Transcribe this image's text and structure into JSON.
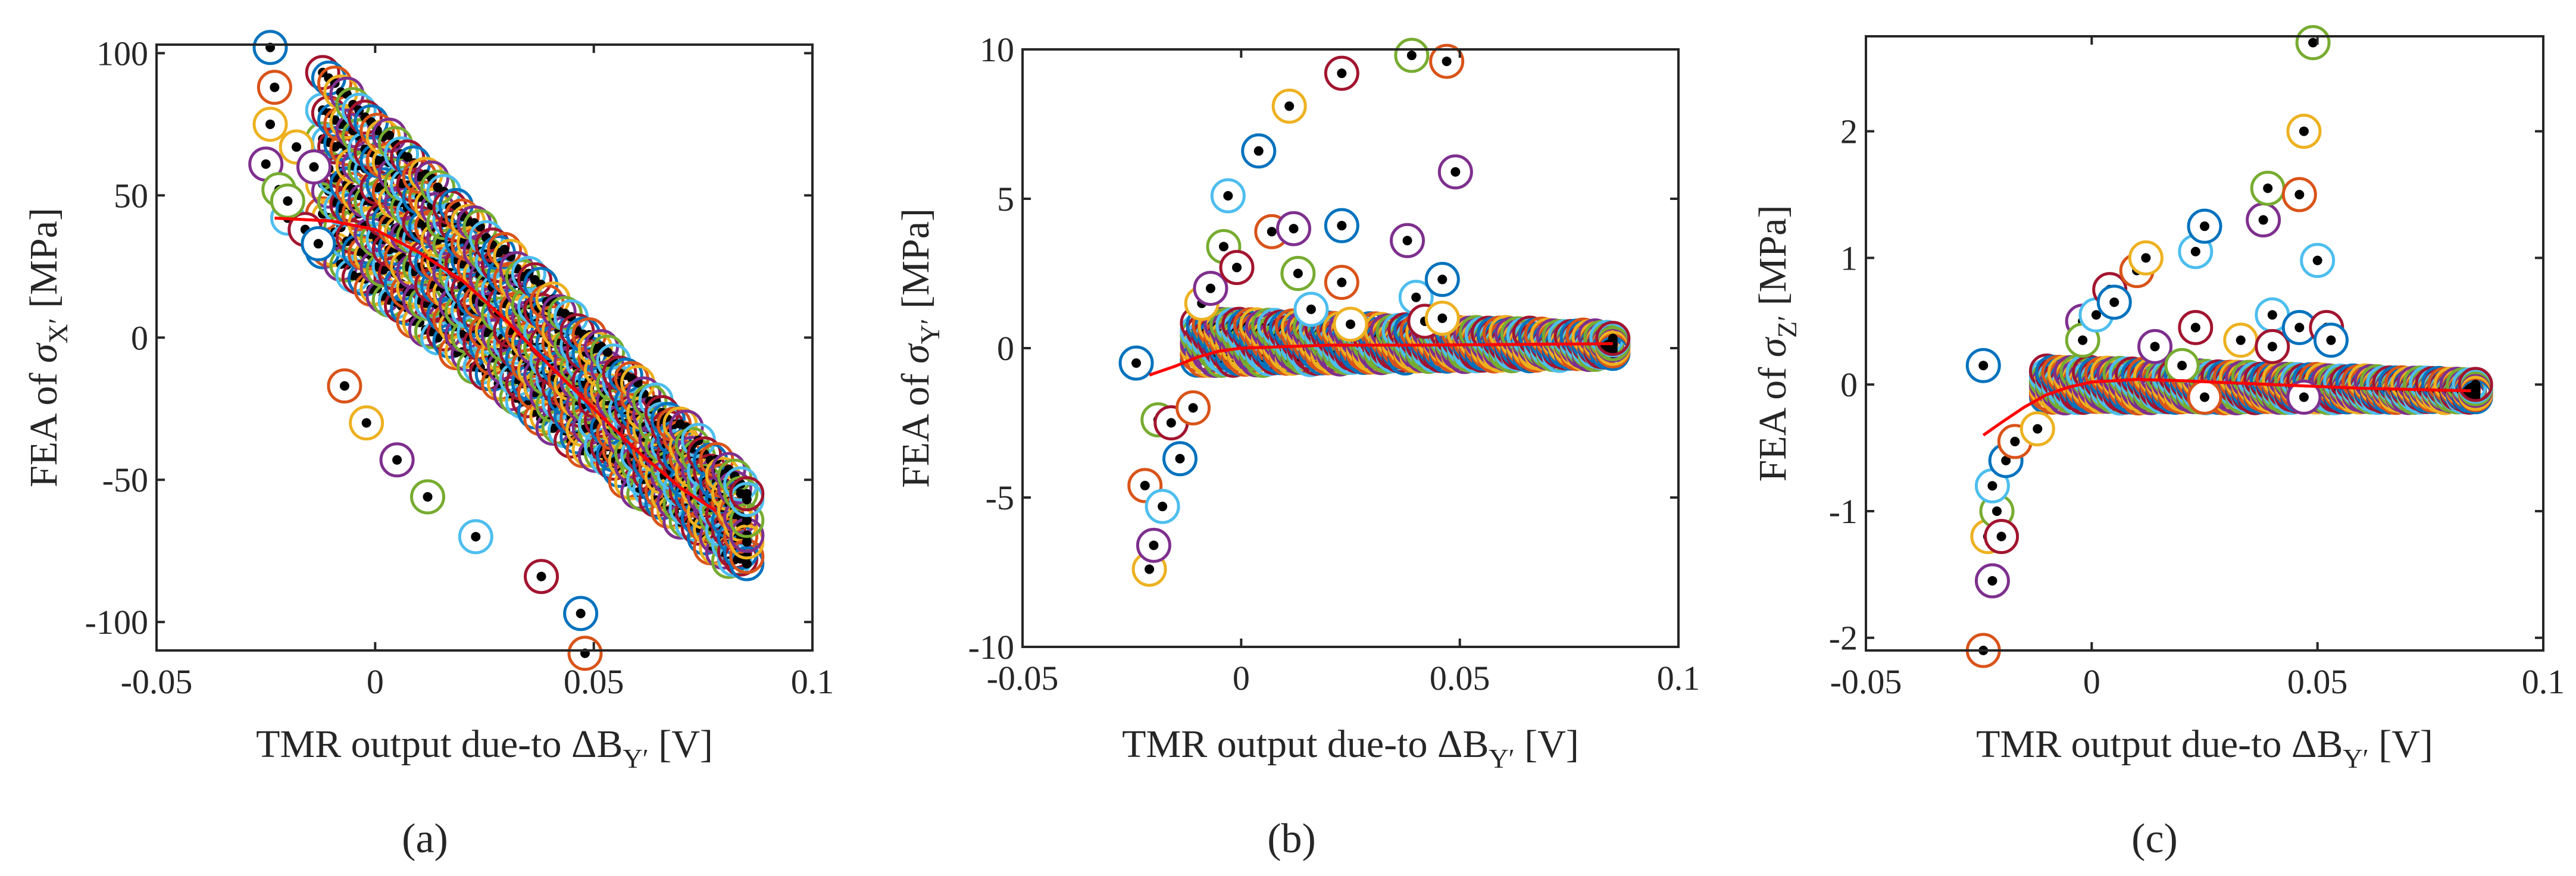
{
  "figure": {
    "marker_colors": [
      "#0072BD",
      "#D95319",
      "#EDB120",
      "#7E2F8E",
      "#77AC30",
      "#4DBEEE",
      "#A2142F"
    ],
    "dot_color": "#000000",
    "fit_color": "#FF0000"
  },
  "chart_data": [
    {
      "type": "scatter",
      "panel": "a",
      "caption": "(a)",
      "xlabel": "TMR output due-to ΔB_Y′ [V]",
      "xlabel_parts": {
        "prefix": "TMR output due-to ΔB",
        "sub": "Y′",
        "suffix": " [V]"
      },
      "ylabel": "FEA of σ_X′ [MPa]",
      "ylabel_parts": {
        "prefix": "FEA of ",
        "sym": "σ",
        "sub": "X′",
        "suffix": " [MPa]"
      },
      "xlim": [
        -0.05,
        0.1
      ],
      "ylim": [
        -110,
        103
      ],
      "xticks": [
        -0.05,
        0,
        0.05,
        0.1
      ],
      "xtick_labels": [
        "-0.05",
        "0",
        "0.05",
        "0.1"
      ],
      "yticks": [
        -100,
        -50,
        0,
        50,
        100
      ],
      "ytick_labels": [
        "-100",
        "-50",
        "0",
        "50",
        "100"
      ],
      "band": {
        "x_start": -0.012,
        "x_end": 0.085,
        "y_start": 62,
        "y_end": -68,
        "spread": 30
      },
      "fit": [
        [
          -0.023,
          42
        ],
        [
          -0.01,
          41
        ],
        [
          0.0,
          38
        ],
        [
          0.01,
          30
        ],
        [
          0.02,
          20
        ],
        [
          0.03,
          6
        ],
        [
          0.04,
          -10
        ],
        [
          0.05,
          -25
        ],
        [
          0.06,
          -40
        ],
        [
          0.07,
          -53
        ],
        [
          0.078,
          -61
        ]
      ],
      "outliers": [
        [
          -0.024,
          102
        ],
        [
          -0.023,
          88
        ],
        [
          -0.024,
          75
        ],
        [
          -0.025,
          61
        ],
        [
          -0.022,
          52
        ],
        [
          -0.02,
          42
        ],
        [
          -0.016,
          38
        ],
        [
          -0.013,
          33
        ],
        [
          -0.007,
          -17
        ],
        [
          -0.002,
          -30
        ],
        [
          0.005,
          -43
        ],
        [
          0.012,
          -56
        ],
        [
          0.023,
          -70
        ],
        [
          0.038,
          -84
        ],
        [
          0.047,
          -97
        ],
        [
          0.048,
          -111
        ],
        [
          -0.018,
          67
        ],
        [
          -0.014,
          60
        ],
        [
          -0.02,
          48
        ]
      ]
    },
    {
      "type": "scatter",
      "panel": "b",
      "caption": "(b)",
      "xlabel": "TMR output due-to ΔB_Y′ [V]",
      "xlabel_parts": {
        "prefix": "TMR output due-to ΔB",
        "sub": "Y′",
        "suffix": " [V]"
      },
      "ylabel": "FEA of σ_Y′ [MPa]",
      "ylabel_parts": {
        "prefix": "FEA of ",
        "sym": "σ",
        "sub": "Y′",
        "suffix": " [MPa]"
      },
      "xlim": [
        -0.05,
        0.1
      ],
      "ylim": [
        -10,
        10
      ],
      "xticks": [
        -0.05,
        0,
        0.05,
        0.1
      ],
      "xtick_labels": [
        "-0.05",
        "0",
        "0.05",
        "0.1"
      ],
      "yticks": [
        -10,
        -5,
        0,
        5,
        10
      ],
      "ytick_labels": [
        "-10",
        "-5",
        "0",
        "5",
        "10"
      ],
      "band": {
        "x_start": -0.01,
        "x_end": 0.085,
        "y_start": 0.2,
        "y_end": 0.1,
        "spread": 0.6
      },
      "fit": [
        [
          -0.021,
          -0.9
        ],
        [
          -0.015,
          -0.6
        ],
        [
          -0.01,
          -0.3
        ],
        [
          -0.005,
          -0.1
        ],
        [
          0.0,
          0.0
        ],
        [
          0.01,
          0.05
        ],
        [
          0.02,
          0.1
        ],
        [
          0.04,
          0.1
        ],
        [
          0.06,
          0.12
        ],
        [
          0.085,
          0.15
        ]
      ],
      "outliers": [
        [
          -0.024,
          -0.5
        ],
        [
          -0.022,
          -4.6
        ],
        [
          -0.021,
          -7.4
        ],
        [
          -0.02,
          -6.6
        ],
        [
          -0.019,
          -2.4
        ],
        [
          -0.018,
          -5.3
        ],
        [
          -0.016,
          -2.5
        ],
        [
          -0.014,
          -3.7
        ],
        [
          -0.011,
          -2.0
        ],
        [
          -0.009,
          1.5
        ],
        [
          -0.007,
          2.0
        ],
        [
          -0.004,
          3.4
        ],
        [
          -0.003,
          5.1
        ],
        [
          -0.001,
          2.7
        ],
        [
          0.004,
          6.6
        ],
        [
          0.007,
          3.9
        ],
        [
          0.011,
          8.1
        ],
        [
          0.012,
          4.0
        ],
        [
          0.013,
          2.5
        ],
        [
          0.016,
          1.3
        ],
        [
          0.023,
          9.2
        ],
        [
          0.023,
          4.1
        ],
        [
          0.023,
          2.2
        ],
        [
          0.025,
          0.8
        ],
        [
          0.038,
          3.6
        ],
        [
          0.039,
          9.8
        ],
        [
          0.04,
          1.7
        ],
        [
          0.042,
          0.9
        ],
        [
          0.046,
          2.3
        ],
        [
          0.047,
          9.6
        ],
        [
          0.046,
          1.0
        ],
        [
          0.049,
          5.9
        ]
      ]
    },
    {
      "type": "scatter",
      "panel": "c",
      "caption": "(c)",
      "xlabel": "TMR output due-to ΔB_Y′ [V]",
      "xlabel_parts": {
        "prefix": "TMR output due-to ΔB",
        "sub": "Y′",
        "suffix": " [V]"
      },
      "ylabel": "FEA of σ_Z′ [MPa]",
      "ylabel_parts": {
        "prefix": "FEA of ",
        "sym": "σ",
        "sub": "Z′",
        "suffix": " [MPa]"
      },
      "xlim": [
        -0.05,
        0.1
      ],
      "ylim": [
        -2.1,
        2.75
      ],
      "xticks": [
        -0.05,
        0,
        0.05,
        0.1
      ],
      "xtick_labels": [
        "-0.05",
        "0",
        "0.05",
        "0.1"
      ],
      "yticks": [
        -2,
        -1,
        0,
        1,
        2
      ],
      "ytick_labels": [
        "-2",
        "-1",
        "0",
        "1",
        "2"
      ],
      "band": {
        "x_start": -0.01,
        "x_end": 0.085,
        "y_start": 0.0,
        "y_end": -0.05,
        "spread": 0.1
      },
      "fit": [
        [
          -0.024,
          -0.4
        ],
        [
          -0.02,
          -0.3
        ],
        [
          -0.015,
          -0.18
        ],
        [
          -0.01,
          -0.08
        ],
        [
          -0.005,
          -0.02
        ],
        [
          0.0,
          0.02
        ],
        [
          0.01,
          0.04
        ],
        [
          0.02,
          0.03
        ],
        [
          0.04,
          0.0
        ],
        [
          0.06,
          -0.03
        ],
        [
          0.084,
          -0.05
        ]
      ],
      "outliers": [
        [
          -0.024,
          0.15
        ],
        [
          -0.024,
          -2.1
        ],
        [
          -0.023,
          -1.2
        ],
        [
          -0.022,
          -1.55
        ],
        [
          -0.021,
          -1.0
        ],
        [
          -0.022,
          -0.8
        ],
        [
          -0.02,
          -1.2
        ],
        [
          -0.019,
          -0.6
        ],
        [
          -0.017,
          -0.45
        ],
        [
          -0.012,
          -0.35
        ],
        [
          -0.002,
          0.5
        ],
        [
          -0.002,
          0.35
        ],
        [
          0.001,
          0.55
        ],
        [
          0.004,
          0.75
        ],
        [
          0.005,
          0.65
        ],
        [
          0.01,
          0.9
        ],
        [
          0.012,
          1.0
        ],
        [
          0.014,
          0.3
        ],
        [
          0.02,
          0.15
        ],
        [
          0.023,
          1.05
        ],
        [
          0.023,
          0.45
        ],
        [
          0.025,
          1.25
        ],
        [
          0.025,
          -0.1
        ],
        [
          0.033,
          0.35
        ],
        [
          0.038,
          1.3
        ],
        [
          0.039,
          1.55
        ],
        [
          0.04,
          0.55
        ],
        [
          0.04,
          0.3
        ],
        [
          0.046,
          0.45
        ],
        [
          0.046,
          1.5
        ],
        [
          0.047,
          2.0
        ],
        [
          0.047,
          -0.1
        ],
        [
          0.049,
          2.7
        ],
        [
          0.05,
          0.98
        ],
        [
          0.052,
          0.45
        ],
        [
          0.053,
          0.35
        ]
      ]
    }
  ]
}
